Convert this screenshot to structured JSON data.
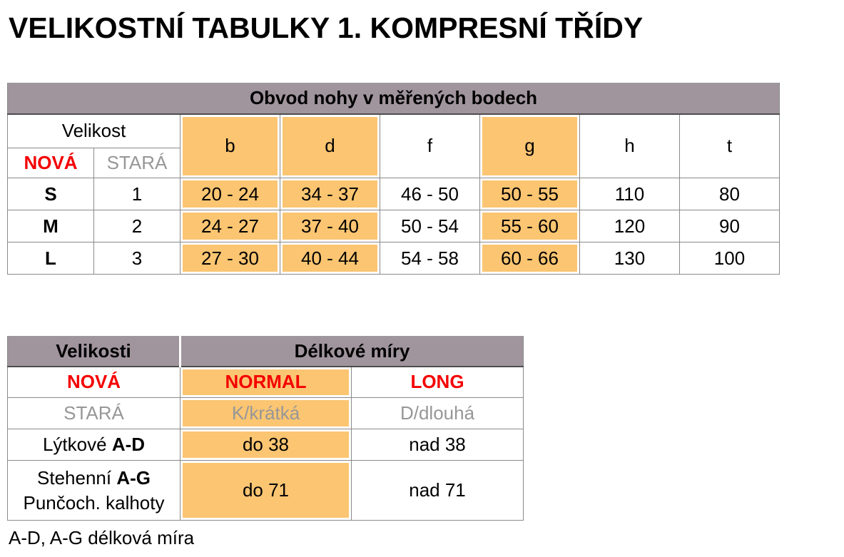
{
  "page": {
    "title": "VELIKOSTNÍ TABULKY 1. KOMPRESNÍ TŘÍDY",
    "footnote": "A-D, A-G délková míra"
  },
  "colors": {
    "header_bg": "#A1959D",
    "highlight_bg": "#FBC572",
    "new_red": "#F40000",
    "old_gray": "#979797"
  },
  "circumference_table": {
    "caption": "Obvod nohy v měřených bodech",
    "size_label": "Velikost",
    "new_label": "NOVÁ",
    "old_label": "STARÁ",
    "measure_points": [
      "b",
      "d",
      "f",
      "g",
      "h",
      "t"
    ],
    "highlighted_points": [
      "b",
      "d",
      "g"
    ],
    "rows": [
      {
        "new": "S",
        "old": "1",
        "b": "20 - 24",
        "d": "34 - 37",
        "f": "46 - 50",
        "g": "50 - 55",
        "h": "110",
        "t": "80"
      },
      {
        "new": "M",
        "old": "2",
        "b": "24 - 27",
        "d": "37 - 40",
        "f": "50 - 54",
        "g": "55 - 60",
        "h": "120",
        "t": "90"
      },
      {
        "new": "L",
        "old": "3",
        "b": "27 - 30",
        "d": "40 - 44",
        "f": "54 - 58",
        "g": "60 - 66",
        "h": "130",
        "t": "100"
      }
    ]
  },
  "length_table": {
    "sizes_header": "Velikosti",
    "lengths_header": "Délkové míry",
    "new_label": "NOVÁ",
    "normal_label": "NORMAL",
    "long_label": "LONG",
    "old_label": "STARÁ",
    "short_old_label": "K/krátká",
    "long_old_label": "D/dlouhá",
    "rows": [
      {
        "name_prefix": "Lýtkové",
        "name_bold": "A-D",
        "name_line2": "",
        "normal": "do 38",
        "long": "nad 38"
      },
      {
        "name_prefix": "Stehenní",
        "name_bold": "A-G",
        "name_line2": "Punčoch. kalhoty",
        "normal": "do 71",
        "long": "nad 71"
      }
    ]
  }
}
